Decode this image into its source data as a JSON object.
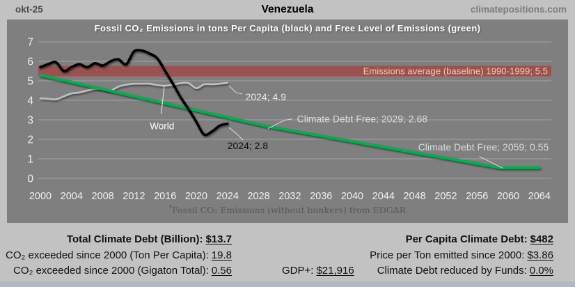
{
  "header": {
    "date": "okt-25",
    "title": "Venezuela",
    "site": "climatepositions.com"
  },
  "chart_data": {
    "type": "line",
    "title": "Fossil CO₂ Emissions in tons Per Capita (black) and Free Level of Emissions (green)",
    "xlabel": "",
    "ylabel": "",
    "xlim": [
      2000,
      2064
    ],
    "ylim": [
      0,
      7
    ],
    "grid": true,
    "legend_position": "none",
    "x_ticks": [
      2000,
      2004,
      2008,
      2012,
      2016,
      2020,
      2024,
      2028,
      2032,
      2036,
      2040,
      2044,
      2048,
      2052,
      2056,
      2060,
      2064
    ],
    "y_ticks": [
      0,
      1,
      2,
      3,
      4,
      5,
      6,
      7
    ],
    "bg_color": "#7f7f7f",
    "grid_color": "#a3a3a3",
    "tick_color": "#f0f0f0",
    "baseline_band": {
      "label": "Emissions average (baseline) 1990-1999; 5.5",
      "value": 5.5,
      "color": "#9c5151",
      "text_color": "#f5c9a4"
    },
    "series": [
      {
        "name": "world-emissions-line",
        "label": "World",
        "color": "#bfbfbf",
        "width": 2.6,
        "smooth": true,
        "points": [
          [
            2000,
            4.1
          ],
          [
            2001,
            4.08
          ],
          [
            2002,
            4.05
          ],
          [
            2003,
            4.2
          ],
          [
            2004,
            4.35
          ],
          [
            2005,
            4.4
          ],
          [
            2006,
            4.5
          ],
          [
            2007,
            4.58
          ],
          [
            2008,
            4.58
          ],
          [
            2009,
            4.5
          ],
          [
            2010,
            4.7
          ],
          [
            2011,
            4.8
          ],
          [
            2012,
            4.85
          ],
          [
            2013,
            4.85
          ],
          [
            2014,
            4.85
          ],
          [
            2015,
            4.78
          ],
          [
            2016,
            4.75
          ],
          [
            2017,
            4.8
          ],
          [
            2018,
            4.88
          ],
          [
            2019,
            4.88
          ],
          [
            2020,
            4.62
          ],
          [
            2021,
            4.82
          ],
          [
            2022,
            4.82
          ],
          [
            2023,
            4.85
          ],
          [
            2024,
            4.9
          ]
        ]
      },
      {
        "name": "free-level-line",
        "label": "Free Level of Emissions",
        "color": "#00b050",
        "width": 4,
        "smooth": false,
        "points": [
          [
            2000,
            5.3
          ],
          [
            2029,
            2.68
          ],
          [
            2059,
            0.55
          ],
          [
            2064,
            0.55
          ]
        ]
      },
      {
        "name": "venezuela-emissions-line",
        "label": "Venezuela Fossil CO₂ Emissions Per Capita",
        "color": "#050505",
        "width": 3.6,
        "smooth": true,
        "points": [
          [
            2000,
            5.7
          ],
          [
            2001,
            5.85
          ],
          [
            2002,
            5.95
          ],
          [
            2003,
            5.5
          ],
          [
            2004,
            5.7
          ],
          [
            2005,
            5.85
          ],
          [
            2006,
            5.7
          ],
          [
            2007,
            5.9
          ],
          [
            2008,
            5.78
          ],
          [
            2009,
            6.0
          ],
          [
            2010,
            6.1
          ],
          [
            2011,
            5.85
          ],
          [
            2012,
            6.5
          ],
          [
            2013,
            6.55
          ],
          [
            2014,
            6.4
          ],
          [
            2015,
            6.15
          ],
          [
            2016,
            5.5
          ],
          [
            2017,
            4.85
          ],
          [
            2018,
            4.15
          ],
          [
            2019,
            3.55
          ],
          [
            2020,
            2.9
          ],
          [
            2021,
            2.25
          ],
          [
            2022,
            2.4
          ],
          [
            2023,
            2.7
          ],
          [
            2024,
            2.8
          ]
        ]
      }
    ],
    "annotations": [
      {
        "text": "World",
        "x": 2015.6,
        "y": 2.7,
        "anchor": "middle",
        "color": "#ffffff",
        "size": 13.5,
        "leader": [
          [
            2015.9,
            4.78
          ],
          [
            2015.5,
            3.3
          ]
        ],
        "leader_color": "#eeeeee"
      },
      {
        "text": "2024; 4.9",
        "x": 2026.3,
        "y": 4.18,
        "anchor": "start",
        "color": "#e8e8e8",
        "size": 14,
        "leader": [
          [
            2024.2,
            4.75
          ],
          [
            2025.1,
            4.4
          ],
          [
            2025.9,
            4.32
          ]
        ],
        "leader_color": "#dddddd"
      },
      {
        "text": "Climate Debt Free; 2029; 2.68",
        "x": 2032.9,
        "y": 3.05,
        "anchor": "start",
        "color": "#dcdcdc",
        "size": 14,
        "leader": [
          [
            2029.2,
            2.55
          ],
          [
            2031.3,
            2.98
          ],
          [
            2032.3,
            3.05
          ]
        ],
        "leader_color": "#dddddd"
      },
      {
        "text": "2024; 2.8",
        "x": 2026.6,
        "y": 1.68,
        "anchor": "middle",
        "color": "#0d0d0d",
        "size": 14,
        "leader": [
          [
            2024.2,
            2.6
          ],
          [
            2025.2,
            2.28
          ],
          [
            2026.0,
            1.95
          ]
        ],
        "leader_color": "#e0e0e0"
      },
      {
        "text": "Climate Debt Free; 2059; 0.55",
        "x": 2065.2,
        "y": 1.6,
        "anchor": "end",
        "color": "#dcdcdc",
        "size": 14,
        "leader": [
          [
            2056.3,
            1.12
          ],
          [
            2059.3,
            0.52
          ]
        ],
        "leader_color": "#dddddd"
      }
    ],
    "footnote_marker": "*",
    "footnote": "Fossil CO₂ Emissions (without bunkers) from EDGAR"
  },
  "stats": {
    "left": [
      {
        "label": "Total Climate Debt (Billion):",
        "value": "$13.7"
      },
      {
        "label": "CO₂ exceeded since 2000 (Ton Per Capita):",
        "value": "19.8"
      },
      {
        "label": "CO₂ exceeded since 2000 (Gigaton Total):",
        "value": "0.56"
      }
    ],
    "gdp": {
      "label": "GDP+:",
      "value": "$21,916"
    },
    "right": [
      {
        "label": "Per Capita Climate Debt:",
        "value": "$482"
      },
      {
        "label": "Price per Ton emitted since 2000:",
        "value": "$3.86"
      },
      {
        "label": "Climate Debt reduced by Funds:",
        "value": "0.0%"
      }
    ]
  }
}
